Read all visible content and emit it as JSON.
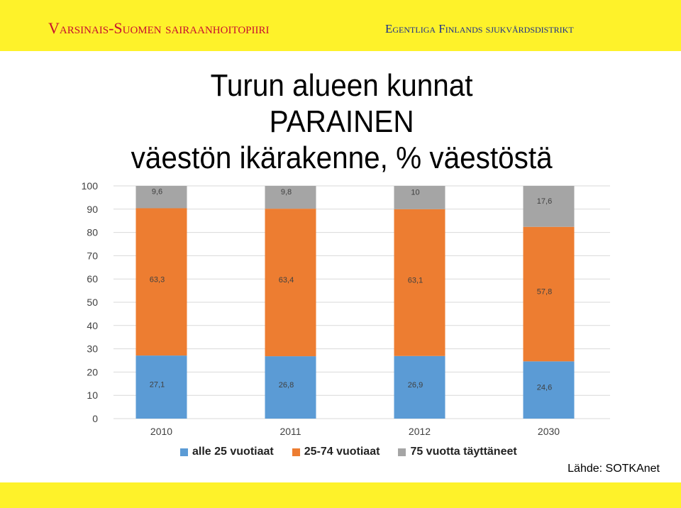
{
  "header": {
    "org_left": "Varsinais-Suomen sairaanhoitopiiri",
    "org_right": "Egentliga Finlands sjukvårdsdistrikt",
    "band_color": "#fef22a"
  },
  "title": {
    "line1": "Turun alueen kunnat",
    "line2": "PARAINEN",
    "line3": "väestön ikärakenne, % väestöstä"
  },
  "source": "Lähde: SOTKAnet",
  "chart_data": {
    "type": "bar",
    "stacked": true,
    "categories": [
      "2010",
      "2011",
      "2012",
      "2030"
    ],
    "series": [
      {
        "name": "alle 25 vuotiaat",
        "color": "#5b9bd5",
        "values": [
          27.1,
          26.8,
          26.9,
          24.6
        ],
        "labels": [
          "27,1",
          "26,8",
          "26,9",
          "24,6"
        ]
      },
      {
        "name": "25-74 vuotiaat",
        "color": "#ed7d31",
        "values": [
          63.3,
          63.4,
          63.1,
          57.8
        ],
        "labels": [
          "63,3",
          "63,4",
          "63,1",
          "57,8"
        ]
      },
      {
        "name": "75 vuotta täyttäneet",
        "color": "#a5a5a5",
        "values": [
          9.6,
          9.8,
          10,
          17.6
        ],
        "labels": [
          "9,6",
          "9,8",
          "10",
          "17,6"
        ]
      }
    ],
    "yticks": [
      "0",
      "10",
      "20",
      "30",
      "40",
      "50",
      "60",
      "70",
      "80",
      "90",
      "100"
    ],
    "ylim": [
      0,
      100
    ],
    "grid": true,
    "legend": "bottom"
  }
}
